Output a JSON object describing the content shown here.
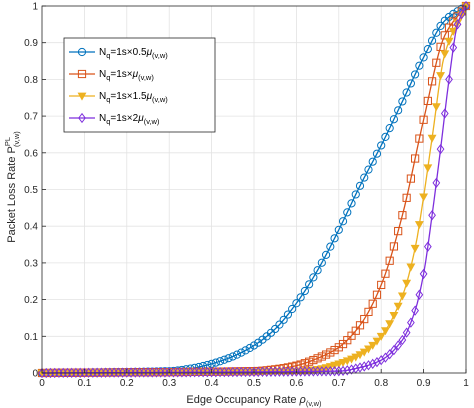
{
  "chart_data": {
    "type": "line",
    "ylabel": {
      "main": "Packet Loss Rate P",
      "sup": "PL",
      "sub": "(v,w)"
    },
    "xlabel": {
      "main": "Edge Occupancy Rate ",
      "symbol": "ρ",
      "sub": "(v,w)"
    },
    "xlim": [
      0,
      1
    ],
    "ylim": [
      0,
      1
    ],
    "xticks": [
      "0",
      "0.1",
      "0.2",
      "0.3",
      "0.4",
      "0.5",
      "0.6",
      "0.7",
      "0.8",
      "0.9",
      "1"
    ],
    "yticks": [
      "0",
      "0.1",
      "0.2",
      "0.3",
      "0.4",
      "0.5",
      "0.6",
      "0.7",
      "0.8",
      "0.9",
      "1"
    ],
    "grid": true,
    "legend_position": "top-left",
    "series": [
      {
        "legend": {
          "a": "N",
          "a_sub": "q",
          "b": "=1s×0.5",
          "c": "μ",
          "c_sub": "(v,w)"
        },
        "color": "#0072BD",
        "marker": "circle",
        "x": [
          0.3,
          0.35,
          0.4,
          0.45,
          0.5,
          0.55,
          0.6,
          0.65,
          0.7,
          0.75,
          0.8,
          0.85,
          0.9,
          0.95,
          1.0
        ],
        "y": [
          0.005,
          0.012,
          0.025,
          0.045,
          0.075,
          0.12,
          0.19,
          0.28,
          0.39,
          0.51,
          0.62,
          0.74,
          0.86,
          0.96,
          1.0
        ]
      },
      {
        "legend": {
          "a": "N",
          "a_sub": "q",
          "b": "=1s×",
          "c": "μ",
          "c_sub": "(v,w)"
        },
        "color": "#D95319",
        "marker": "square",
        "x": [
          0.5,
          0.55,
          0.6,
          0.65,
          0.7,
          0.75,
          0.8,
          0.85,
          0.9,
          0.95,
          1.0
        ],
        "y": [
          0.005,
          0.01,
          0.02,
          0.04,
          0.07,
          0.13,
          0.24,
          0.43,
          0.69,
          0.92,
          1.0
        ]
      },
      {
        "legend": {
          "a": "N",
          "a_sub": "q",
          "b": "=1s×1.5",
          "c": "μ",
          "c_sub": "(v,w)"
        },
        "color": "#EDB120",
        "marker": "triangle-down",
        "x": [
          0.6,
          0.65,
          0.7,
          0.75,
          0.8,
          0.85,
          0.88,
          0.9,
          0.92,
          0.95,
          1.0
        ],
        "y": [
          0.005,
          0.01,
          0.025,
          0.05,
          0.1,
          0.21,
          0.34,
          0.48,
          0.64,
          0.87,
          1.0
        ]
      },
      {
        "legend": {
          "a": "N",
          "a_sub": "q",
          "b": "=1s×2",
          "c": "μ",
          "c_sub": "(v,w)"
        },
        "color": "#7E2FDD",
        "marker": "diamond",
        "x": [
          0.7,
          0.75,
          0.8,
          0.85,
          0.88,
          0.9,
          0.92,
          0.94,
          0.96,
          0.98,
          1.0
        ],
        "y": [
          0.005,
          0.015,
          0.035,
          0.09,
          0.17,
          0.27,
          0.43,
          0.61,
          0.8,
          0.95,
          1.0
        ]
      }
    ]
  }
}
